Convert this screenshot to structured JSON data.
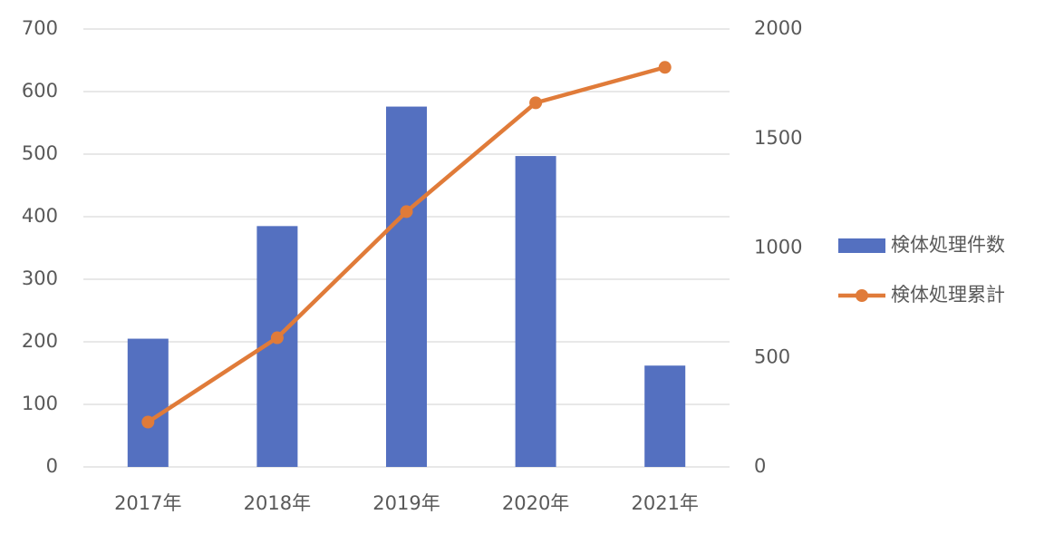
{
  "chart_data": {
    "type": "bar",
    "categories": [
      "2017年",
      "2018年",
      "2019年",
      "2020年",
      "2021年"
    ],
    "series": [
      {
        "name": "検体処理件数",
        "type": "bar",
        "color": "#5470c0",
        "values": [
          205,
          385,
          576,
          497,
          162
        ]
      },
      {
        "name": "検体処理累計",
        "type": "line",
        "axis": "y2",
        "color": "#e07b39",
        "values": [
          205,
          590,
          1166,
          1663,
          1825
        ]
      }
    ],
    "ylim": [
      0,
      700
    ],
    "yticks": [
      0,
      100,
      200,
      300,
      400,
      500,
      600,
      700
    ],
    "y2lim": [
      0,
      2000
    ],
    "y2ticks": [
      0,
      500,
      1000,
      1500,
      2000
    ],
    "grid": true,
    "legend": "right"
  }
}
